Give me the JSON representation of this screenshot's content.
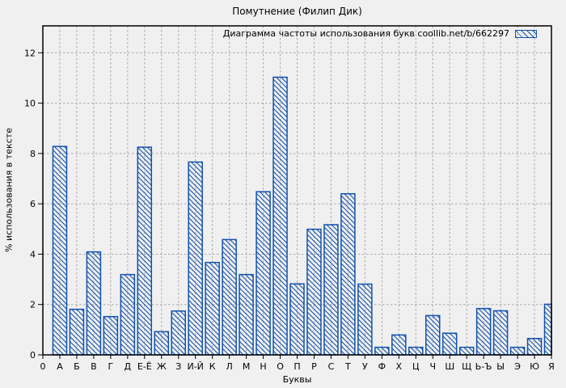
{
  "chart_data": {
    "type": "bar",
    "title": "Помутнение (Филип Дик)",
    "legend": "Диаграмма частоты использования букв coollib.net/b/662297",
    "xlabel": "Буквы",
    "ylabel": "% использования в тексте",
    "categories": [
      "А",
      "Б",
      "В",
      "Г",
      "Д",
      "Е-Ё",
      "Ж",
      "З",
      "И-Й",
      "К",
      "Л",
      "М",
      "Н",
      "О",
      "П",
      "Р",
      "С",
      "Т",
      "У",
      "Ф",
      "Х",
      "Ц",
      "Ч",
      "Ш",
      "Щ",
      "Ь-Ъ",
      "Ы",
      "Э",
      "Ю",
      "Я"
    ],
    "values": [
      8.28,
      1.81,
      4.09,
      1.52,
      3.19,
      8.25,
      0.92,
      1.74,
      7.66,
      3.67,
      4.58,
      3.19,
      6.48,
      11.03,
      2.82,
      4.99,
      5.17,
      6.4,
      2.81,
      0.3,
      0.79,
      0.3,
      1.56,
      0.86,
      0.3,
      1.84,
      1.75,
      0.3,
      0.65,
      2.01
    ],
    "x_origin_tick_label": "0",
    "y_ticks": [
      0,
      2,
      4,
      6,
      8,
      10,
      12
    ],
    "ylim": [
      0,
      13.07
    ],
    "grid": true,
    "grid_style": "dashed",
    "legend_position": "top-right-inside",
    "hatch": "backslash-diagonal",
    "colors": {
      "bar": "#1251ad",
      "grid": "#a8a8a8",
      "border": "#000000",
      "background": "#f0f0f0",
      "text": "#000000"
    }
  }
}
